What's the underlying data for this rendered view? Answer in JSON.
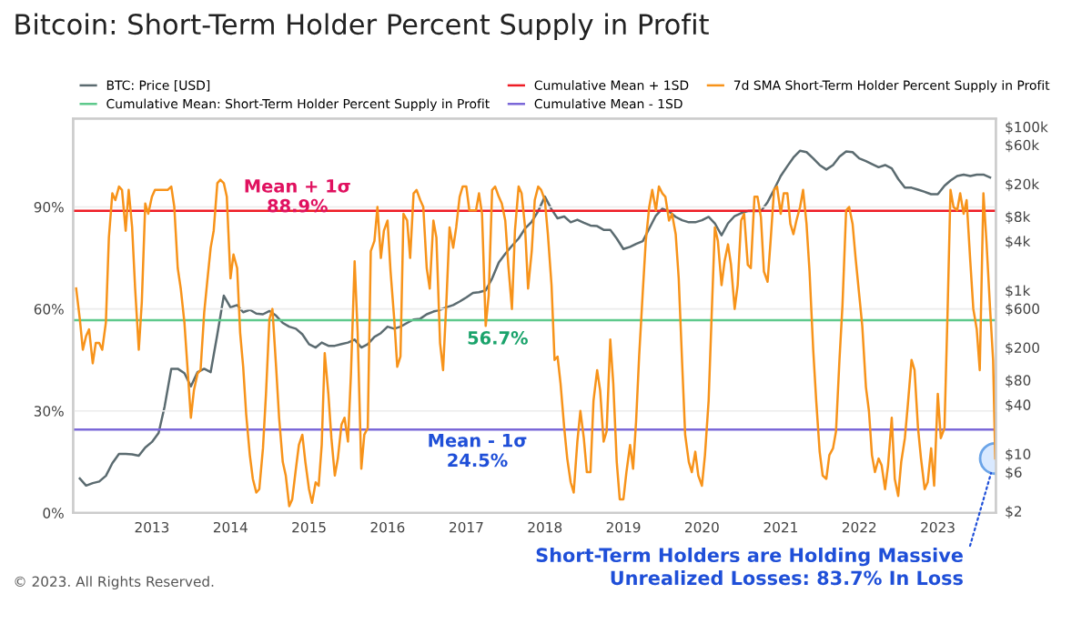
{
  "chart_data": {
    "type": "line",
    "title": "Bitcoin: Short-Term Holder Percent Supply in Profit",
    "xlim": [
      "2012-01-01",
      "2023-09-28"
    ],
    "xticks": [
      "2013",
      "2014",
      "2015",
      "2016",
      "2017",
      "2018",
      "2019",
      "2020",
      "2021",
      "2022",
      "2023"
    ],
    "ylim": [
      0,
      116
    ],
    "yticks": [
      {
        "value": 0,
        "label": "0%"
      },
      {
        "value": 30,
        "label": "30%"
      },
      {
        "value": 60,
        "label": "60%"
      },
      {
        "value": 90,
        "label": "90%"
      }
    ],
    "log": "y2",
    "y2lim": [
      1.9,
      126000
    ],
    "y2ticks": [
      {
        "value": 2,
        "label": "$2"
      },
      {
        "value": 6,
        "label": "$6"
      },
      {
        "value": 10,
        "label": "$10"
      },
      {
        "value": 40,
        "label": "$40"
      },
      {
        "value": 80,
        "label": "$80"
      },
      {
        "value": 200,
        "label": "$200"
      },
      {
        "value": 600,
        "label": "$600"
      },
      {
        "value": 1000,
        "label": "$1k"
      },
      {
        "value": 4000,
        "label": "$4k"
      },
      {
        "value": 8000,
        "label": "$8k"
      },
      {
        "value": 20000,
        "label": "$20k"
      },
      {
        "value": 60000,
        "label": "$60k"
      },
      {
        "value": 100000,
        "label": "$100k"
      }
    ],
    "grid": "y",
    "legend": "top",
    "series": [
      {
        "name": "BTC: Price [USD]",
        "color": "#5b6b70",
        "axis": "y2",
        "x": [
          "2012-02",
          "2012-03",
          "2012-04",
          "2012-05",
          "2012-06",
          "2012-07",
          "2012-08",
          "2012-09",
          "2012-10",
          "2012-11",
          "2012-12",
          "2013-01",
          "2013-02",
          "2013-03",
          "2013-04",
          "2013-05",
          "2013-06",
          "2013-07",
          "2013-08",
          "2013-09",
          "2013-10",
          "2013-11",
          "2013-12",
          "2014-01",
          "2014-02",
          "2014-03",
          "2014-04",
          "2014-05",
          "2014-06",
          "2014-07",
          "2014-08",
          "2014-09",
          "2014-10",
          "2014-11",
          "2014-12",
          "2015-01",
          "2015-02",
          "2015-03",
          "2015-04",
          "2015-05",
          "2015-06",
          "2015-07",
          "2015-08",
          "2015-09",
          "2015-10",
          "2015-11",
          "2015-12",
          "2016-01",
          "2016-02",
          "2016-03",
          "2016-04",
          "2016-05",
          "2016-06",
          "2016-07",
          "2016-08",
          "2016-09",
          "2016-10",
          "2016-11",
          "2016-12",
          "2017-01",
          "2017-02",
          "2017-03",
          "2017-04",
          "2017-05",
          "2017-06",
          "2017-07",
          "2017-08",
          "2017-09",
          "2017-10",
          "2017-11",
          "2017-12",
          "2018-01",
          "2018-02",
          "2018-03",
          "2018-04",
          "2018-05",
          "2018-06",
          "2018-07",
          "2018-08",
          "2018-09",
          "2018-10",
          "2018-11",
          "2018-12",
          "2019-01",
          "2019-02",
          "2019-03",
          "2019-04",
          "2019-05",
          "2019-06",
          "2019-07",
          "2019-08",
          "2019-09",
          "2019-10",
          "2019-11",
          "2019-12",
          "2020-01",
          "2020-02",
          "2020-03",
          "2020-04",
          "2020-05",
          "2020-06",
          "2020-07",
          "2020-08",
          "2020-09",
          "2020-10",
          "2020-11",
          "2020-12",
          "2021-01",
          "2021-02",
          "2021-03",
          "2021-04",
          "2021-05",
          "2021-06",
          "2021-07",
          "2021-08",
          "2021-09",
          "2021-10",
          "2021-11",
          "2021-12",
          "2022-01",
          "2022-02",
          "2022-03",
          "2022-04",
          "2022-05",
          "2022-06",
          "2022-07",
          "2022-08",
          "2022-09",
          "2022-10",
          "2022-11",
          "2022-12",
          "2023-01",
          "2023-02",
          "2023-03",
          "2023-04",
          "2023-05",
          "2023-06",
          "2023-07",
          "2023-08",
          "2023-09"
        ],
        "values": [
          5,
          4.1,
          4.4,
          4.6,
          5.4,
          7.7,
          10,
          10,
          9.9,
          9.5,
          12,
          14,
          18,
          38,
          110,
          110,
          97,
          67,
          100,
          110,
          100,
          290,
          860,
          620,
          660,
          540,
          580,
          520,
          510,
          560,
          490,
          400,
          360,
          340,
          290,
          220,
          200,
          230,
          210,
          210,
          220,
          230,
          250,
          200,
          220,
          270,
          300,
          360,
          340,
          360,
          400,
          440,
          450,
          510,
          550,
          580,
          620,
          660,
          730,
          820,
          930,
          950,
          1000,
          1400,
          2200,
          2800,
          3500,
          4300,
          5700,
          6900,
          9300,
          14000,
          9800,
          7600,
          8000,
          6800,
          7300,
          6700,
          6200,
          6100,
          5500,
          5500,
          4300,
          3200,
          3400,
          3700,
          4000,
          5700,
          8200,
          10000,
          9200,
          7900,
          7200,
          6800,
          6800,
          7200,
          7900,
          6600,
          4700,
          6600,
          8100,
          8800,
          9300,
          9400,
          9300,
          12000,
          17000,
          25000,
          33000,
          42000,
          51000,
          49000,
          41000,
          34000,
          30000,
          34000,
          43000,
          50000,
          49000,
          41000,
          38000,
          35000,
          32000,
          34000,
          31000,
          23000,
          18000,
          18000,
          17000,
          16000,
          15000,
          15000,
          19000,
          22000,
          25000,
          26000,
          25000,
          26000,
          26000,
          24000
        ]
      },
      {
        "name": "Cumulative Mean: Short-Term Holder Percent Supply in Profit",
        "color": "#5ec98c",
        "x": [
          "2012-01-01",
          "2023-09-28"
        ],
        "values": [
          56.7,
          56.7
        ]
      },
      {
        "name": "Cumulative Mean + 1SD",
        "color": "#ee1c25",
        "x": [
          "2012-01-01",
          "2023-09-28"
        ],
        "values": [
          88.9,
          88.9
        ]
      },
      {
        "name": "Cumulative Mean - 1SD",
        "color": "#7b68d8",
        "x": [
          "2012-01-01",
          "2023-09-28"
        ],
        "values": [
          24.5,
          24.5
        ]
      },
      {
        "name": "7d SMA Short-Term Holder Percent Supply in Profit",
        "color": "#f7931a",
        "x": [
          "2012-01-15",
          "2012-02-01",
          "2012-02-15",
          "2012-03-01",
          "2012-03-15",
          "2012-04-01",
          "2012-04-15",
          "2012-05-01",
          "2012-05-15",
          "2012-06-01",
          "2012-06-15",
          "2012-07-01",
          "2012-07-15",
          "2012-08-01",
          "2012-08-15",
          "2012-09-01",
          "2012-09-15",
          "2012-10-01",
          "2012-10-15",
          "2012-11-01",
          "2012-11-15",
          "2012-12-01",
          "2012-12-15",
          "2013-01-01",
          "2013-01-15",
          "2013-02-01",
          "2013-02-15",
          "2013-03-01",
          "2013-03-15",
          "2013-04-01",
          "2013-04-15",
          "2013-05-01",
          "2013-05-15",
          "2013-06-01",
          "2013-06-15",
          "2013-07-01",
          "2013-07-15",
          "2013-08-01",
          "2013-08-15",
          "2013-09-01",
          "2013-09-15",
          "2013-10-01",
          "2013-10-15",
          "2013-11-01",
          "2013-11-15",
          "2013-12-01",
          "2013-12-15",
          "2014-01-01",
          "2014-01-15",
          "2014-02-01",
          "2014-02-15",
          "2014-03-01",
          "2014-03-15",
          "2014-04-01",
          "2014-04-15",
          "2014-05-01",
          "2014-05-15",
          "2014-06-01",
          "2014-06-15",
          "2014-07-01",
          "2014-07-15",
          "2014-08-01",
          "2014-08-15",
          "2014-09-01",
          "2014-09-15",
          "2014-10-01",
          "2014-10-15",
          "2014-11-01",
          "2014-11-15",
          "2014-12-01",
          "2014-12-15",
          "2015-01-01",
          "2015-01-15",
          "2015-02-01",
          "2015-02-15",
          "2015-03-01",
          "2015-03-15",
          "2015-04-01",
          "2015-04-15",
          "2015-05-01",
          "2015-05-15",
          "2015-06-01",
          "2015-06-15",
          "2015-07-01",
          "2015-07-15",
          "2015-08-01",
          "2015-08-15",
          "2015-09-01",
          "2015-09-15",
          "2015-10-01",
          "2015-10-15",
          "2015-11-01",
          "2015-11-15",
          "2015-12-01",
          "2015-12-15",
          "2016-01-01",
          "2016-01-15",
          "2016-02-01",
          "2016-02-15",
          "2016-03-01",
          "2016-03-15",
          "2016-04-01",
          "2016-04-15",
          "2016-05-01",
          "2016-05-15",
          "2016-06-01",
          "2016-06-15",
          "2016-07-01",
          "2016-07-15",
          "2016-08-01",
          "2016-08-15",
          "2016-09-01",
          "2016-09-15",
          "2016-10-01",
          "2016-10-15",
          "2016-11-01",
          "2016-11-15",
          "2016-12-01",
          "2016-12-15",
          "2017-01-01",
          "2017-01-15",
          "2017-02-01",
          "2017-02-15",
          "2017-03-01",
          "2017-03-15",
          "2017-04-01",
          "2017-04-15",
          "2017-05-01",
          "2017-05-15",
          "2017-06-01",
          "2017-06-15",
          "2017-07-01",
          "2017-07-15",
          "2017-08-01",
          "2017-08-15",
          "2017-09-01",
          "2017-09-15",
          "2017-10-01",
          "2017-10-15",
          "2017-11-01",
          "2017-11-15",
          "2017-12-01",
          "2017-12-15",
          "2018-01-01",
          "2018-01-15",
          "2018-02-01",
          "2018-02-15",
          "2018-03-01",
          "2018-03-15",
          "2018-04-01",
          "2018-04-15",
          "2018-05-01",
          "2018-05-15",
          "2018-06-01",
          "2018-06-15",
          "2018-07-01",
          "2018-07-15",
          "2018-08-01",
          "2018-08-15",
          "2018-09-01",
          "2018-09-15",
          "2018-10-01",
          "2018-10-15",
          "2018-11-01",
          "2018-11-15",
          "2018-12-01",
          "2018-12-15",
          "2019-01-01",
          "2019-01-15",
          "2019-02-01",
          "2019-02-15",
          "2019-03-01",
          "2019-03-15",
          "2019-04-01",
          "2019-04-15",
          "2019-05-01",
          "2019-05-15",
          "2019-06-01",
          "2019-06-15",
          "2019-07-01",
          "2019-07-15",
          "2019-08-01",
          "2019-08-15",
          "2019-09-01",
          "2019-09-15",
          "2019-10-01",
          "2019-10-15",
          "2019-11-01",
          "2019-11-15",
          "2019-12-01",
          "2019-12-15",
          "2020-01-01",
          "2020-01-15",
          "2020-02-01",
          "2020-02-15",
          "2020-03-01",
          "2020-03-15",
          "2020-04-01",
          "2020-04-15",
          "2020-05-01",
          "2020-05-15",
          "2020-06-01",
          "2020-06-15",
          "2020-07-01",
          "2020-07-15",
          "2020-08-01",
          "2020-08-15",
          "2020-09-01",
          "2020-09-15",
          "2020-10-01",
          "2020-10-15",
          "2020-11-01",
          "2020-11-15",
          "2020-12-01",
          "2020-12-15",
          "2021-01-01",
          "2021-01-15",
          "2021-02-01",
          "2021-02-15",
          "2021-03-01",
          "2021-03-15",
          "2021-04-01",
          "2021-04-15",
          "2021-05-01",
          "2021-05-15",
          "2021-06-01",
          "2021-06-15",
          "2021-07-01",
          "2021-07-15",
          "2021-08-01",
          "2021-08-15",
          "2021-09-01",
          "2021-09-15",
          "2021-10-01",
          "2021-10-15",
          "2021-11-01",
          "2021-11-15",
          "2021-12-01",
          "2021-12-15",
          "2022-01-01",
          "2022-01-15",
          "2022-02-01",
          "2022-02-15",
          "2022-03-01",
          "2022-03-15",
          "2022-04-01",
          "2022-04-15",
          "2022-05-01",
          "2022-05-15",
          "2022-06-01",
          "2022-06-15",
          "2022-07-01",
          "2022-07-15",
          "2022-08-01",
          "2022-08-15",
          "2022-09-01",
          "2022-09-15",
          "2022-10-01",
          "2022-10-15",
          "2022-11-01",
          "2022-11-15",
          "2022-12-01",
          "2022-12-15",
          "2023-01-01",
          "2023-01-15",
          "2023-02-01",
          "2023-02-15",
          "2023-03-01",
          "2023-03-15",
          "2023-04-01",
          "2023-04-15",
          "2023-05-01",
          "2023-05-15",
          "2023-06-01",
          "2023-06-15",
          "2023-07-01",
          "2023-07-15",
          "2023-08-01",
          "2023-08-15",
          "2023-09-01",
          "2023-09-15",
          "2023-09-25"
        ],
        "values": [
          66,
          57,
          48,
          52,
          54,
          44,
          50,
          50,
          48,
          56,
          81,
          94,
          92,
          96,
          95,
          83,
          95,
          84,
          66,
          48,
          62,
          91,
          88,
          93,
          95,
          95,
          95,
          95,
          95,
          96,
          90,
          72,
          66,
          56,
          43,
          28,
          36,
          41,
          42,
          59,
          68,
          78,
          83,
          97,
          98,
          97,
          93,
          69,
          76,
          72,
          53,
          43,
          29,
          17,
          10,
          6,
          7,
          19,
          35,
          57,
          60,
          43,
          28,
          15,
          11,
          2,
          4,
          13,
          20,
          23,
          15,
          7,
          3,
          9,
          8,
          20,
          47,
          35,
          22,
          11,
          16,
          26,
          28,
          21,
          41,
          74,
          53,
          13,
          23,
          25,
          77,
          80,
          90,
          75,
          83,
          86,
          71,
          57,
          43,
          46,
          88,
          86,
          75,
          94,
          95,
          92,
          90,
          72,
          66,
          86,
          81,
          50,
          42,
          63,
          84,
          78,
          84,
          93,
          96,
          96,
          89,
          89,
          89,
          94,
          88,
          55,
          64,
          95,
          96,
          93,
          91,
          86,
          73,
          60,
          83,
          96,
          94,
          84,
          66,
          77,
          92,
          96,
          95,
          92,
          82,
          67,
          45,
          46,
          38,
          25,
          16,
          9,
          6,
          21,
          30,
          22,
          12,
          12,
          33,
          42,
          36,
          21,
          24,
          51,
          38,
          15,
          4,
          4,
          12,
          20,
          13,
          27,
          46,
          65,
          80,
          90,
          95,
          89,
          96,
          94,
          93,
          86,
          88,
          82,
          69,
          44,
          23,
          15,
          12,
          18,
          11,
          8,
          17,
          33,
          58,
          84,
          80,
          67,
          74,
          79,
          73,
          60,
          67,
          86,
          88,
          73,
          72,
          93,
          93,
          87,
          71,
          68,
          80,
          95,
          96,
          88,
          94,
          94,
          85,
          82,
          86,
          90,
          95,
          85,
          71,
          48,
          33,
          18,
          11,
          10,
          17,
          19,
          24,
          45,
          61,
          89,
          90,
          85,
          75,
          64,
          55,
          37,
          30,
          17,
          12,
          16,
          14,
          7,
          14,
          28,
          10,
          5,
          15,
          22,
          32,
          45,
          42,
          25,
          16,
          7,
          9,
          19,
          8,
          35,
          22,
          25,
          58,
          95,
          90,
          89,
          94,
          88,
          92,
          74,
          60,
          54,
          42,
          94,
          80,
          60,
          45,
          16
        ]
      }
    ],
    "annotations": [
      "Mean + 1σ\n88.9%",
      "56.7%",
      "Mean - 1σ\n24.5%",
      {
        "text": "Short-Term Holders are Holding Massive\nUnrealized Losses: 83.7% In Loss",
        "x": "2023-09-25",
        "y": 16
      },
      "© 2023. All Rights Reserved."
    ]
  }
}
